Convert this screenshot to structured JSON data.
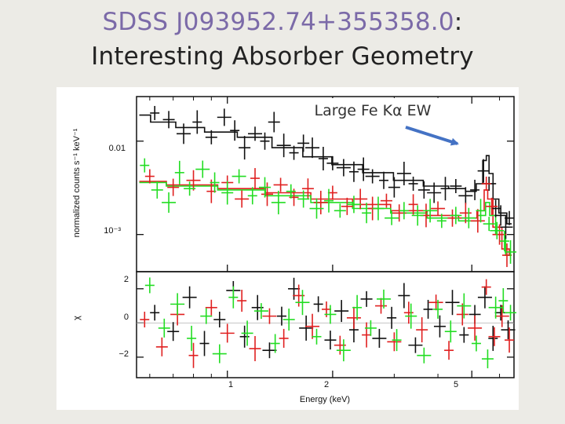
{
  "title": {
    "object": "SDSS J093952.74+355358.0",
    "colon": ":",
    "subtitle": "Interesting Absorber Geometry"
  },
  "chart_data": {
    "type": "scatter",
    "xlabel": "Energy (keV)",
    "x_scale": "log",
    "xlim": [
      0.55,
      6.6
    ],
    "x_ticks": [
      "1",
      "2",
      "5"
    ],
    "annotation": "Large Fe Kα EW",
    "colors": {
      "black": "#111111",
      "red": "#e02020",
      "green": "#22dd22",
      "arrow": "#4472c4"
    },
    "top_panel": {
      "ylabel": "normalized counts s⁻¹ keV⁻¹",
      "y_scale": "log",
      "ylim": [
        0.0004,
        0.03
      ],
      "y_ticks": [
        "0.01",
        "10⁻³"
      ],
      "series": [
        {
          "color": "black",
          "points": [
            [
              0.62,
              0.02
            ],
            [
              0.68,
              0.017
            ],
            [
              0.75,
              0.012
            ],
            [
              0.82,
              0.016
            ],
            [
              0.9,
              0.011
            ],
            [
              0.98,
              0.018
            ],
            [
              1.05,
              0.013
            ],
            [
              1.12,
              0.0085
            ],
            [
              1.2,
              0.012
            ],
            [
              1.28,
              0.01
            ],
            [
              1.36,
              0.016
            ],
            [
              1.45,
              0.009
            ],
            [
              1.55,
              0.0075
            ],
            [
              1.65,
              0.0095
            ],
            [
              1.75,
              0.0085
            ],
            [
              1.88,
              0.0065
            ],
            [
              2.0,
              0.0058
            ],
            [
              2.15,
              0.0052
            ],
            [
              2.3,
              0.0047
            ],
            [
              2.45,
              0.005
            ],
            [
              2.6,
              0.0042
            ],
            [
              2.8,
              0.0038
            ],
            [
              3.0,
              0.0032
            ],
            [
              3.2,
              0.0045
            ],
            [
              3.4,
              0.0035
            ],
            [
              3.65,
              0.003
            ],
            [
              3.9,
              0.0028
            ],
            [
              4.2,
              0.0031
            ],
            [
              4.5,
              0.0033
            ],
            [
              4.8,
              0.0026
            ],
            [
              5.1,
              0.003
            ],
            [
              5.4,
              0.0048
            ],
            [
              5.6,
              0.0035
            ],
            [
              5.85,
              0.0019
            ],
            [
              6.05,
              0.0016
            ],
            [
              6.25,
              0.0012
            ],
            [
              6.4,
              0.0015
            ]
          ],
          "model": [
            [
              0.56,
              0.019
            ],
            [
              0.65,
              0.016
            ],
            [
              0.78,
              0.014
            ],
            [
              0.95,
              0.0125
            ],
            [
              1.2,
              0.011
            ],
            [
              1.5,
              0.0085
            ],
            [
              1.8,
              0.0068
            ],
            [
              2.2,
              0.0056
            ],
            [
              2.7,
              0.0046
            ],
            [
              3.3,
              0.0038
            ],
            [
              4.0,
              0.0033
            ],
            [
              4.6,
              0.0031
            ],
            [
              5.0,
              0.0029
            ],
            [
              5.3,
              0.0035
            ],
            [
              5.45,
              0.0062
            ],
            [
              5.55,
              0.007
            ],
            [
              5.65,
              0.0045
            ],
            [
              5.85,
              0.0024
            ],
            [
              6.1,
              0.0017
            ],
            [
              6.5,
              0.0013
            ]
          ]
        },
        {
          "color": "red",
          "points": [
            [
              0.6,
              0.0042
            ],
            [
              0.7,
              0.0032
            ],
            [
              0.8,
              0.0038
            ],
            [
              0.9,
              0.0029
            ],
            [
              1.0,
              0.0036
            ],
            [
              1.1,
              0.0024
            ],
            [
              1.2,
              0.004
            ],
            [
              1.3,
              0.0027
            ],
            [
              1.42,
              0.0034
            ],
            [
              1.55,
              0.0025
            ],
            [
              1.7,
              0.0031
            ],
            [
              1.85,
              0.0022
            ],
            [
              2.0,
              0.0028
            ],
            [
              2.2,
              0.002
            ],
            [
              2.4,
              0.0024
            ],
            [
              2.6,
              0.0019
            ],
            [
              2.85,
              0.0023
            ],
            [
              3.1,
              0.0017
            ],
            [
              3.4,
              0.0021
            ],
            [
              3.7,
              0.0016
            ],
            [
              4.0,
              0.0019
            ],
            [
              4.4,
              0.0015
            ],
            [
              4.8,
              0.0017
            ],
            [
              5.2,
              0.0014
            ],
            [
              5.5,
              0.0035
            ],
            [
              5.7,
              0.002
            ],
            [
              6.0,
              0.001
            ],
            [
              6.3,
              0.0006
            ]
          ],
          "model": [
            [
              0.56,
              0.0037
            ],
            [
              0.8,
              0.0034
            ],
            [
              1.1,
              0.0031
            ],
            [
              1.5,
              0.0028
            ],
            [
              2.0,
              0.0024
            ],
            [
              2.6,
              0.0021
            ],
            [
              3.3,
              0.0018
            ],
            [
              4.2,
              0.0016
            ],
            [
              5.0,
              0.0015
            ],
            [
              5.35,
              0.0018
            ],
            [
              5.5,
              0.003
            ],
            [
              5.6,
              0.0024
            ],
            [
              5.9,
              0.0012
            ],
            [
              6.3,
              0.0007
            ],
            [
              6.5,
              0.0006
            ]
          ]
        },
        {
          "color": "green",
          "points": [
            [
              0.58,
              0.0055
            ],
            [
              0.63,
              0.003
            ],
            [
              0.68,
              0.0022
            ],
            [
              0.73,
              0.0046
            ],
            [
              0.78,
              0.0031
            ],
            [
              0.85,
              0.005
            ],
            [
              0.92,
              0.0036
            ],
            [
              1.0,
              0.0028
            ],
            [
              1.08,
              0.0042
            ],
            [
              1.18,
              0.0026
            ],
            [
              1.28,
              0.0032
            ],
            [
              1.4,
              0.0022
            ],
            [
              1.52,
              0.0029
            ],
            [
              1.65,
              0.0024
            ],
            [
              1.8,
              0.0019
            ],
            [
              1.95,
              0.0023
            ],
            [
              2.1,
              0.0018
            ],
            [
              2.3,
              0.0021
            ],
            [
              2.5,
              0.0017
            ],
            [
              2.7,
              0.0019
            ],
            [
              2.95,
              0.0015
            ],
            [
              3.2,
              0.0018
            ],
            [
              3.5,
              0.0016
            ],
            [
              3.8,
              0.0018
            ],
            [
              4.1,
              0.0014
            ],
            [
              4.5,
              0.0016
            ],
            [
              4.9,
              0.0015
            ],
            [
              5.3,
              0.0018
            ],
            [
              5.6,
              0.0013
            ],
            [
              5.9,
              0.0011
            ],
            [
              6.2,
              0.00085
            ],
            [
              6.45,
              0.00065
            ]
          ],
          "model": [
            [
              0.56,
              0.0036
            ],
            [
              0.8,
              0.0033
            ],
            [
              1.1,
              0.003
            ],
            [
              1.5,
              0.0026
            ],
            [
              2.0,
              0.0022
            ],
            [
              2.6,
              0.0019
            ],
            [
              3.3,
              0.0017
            ],
            [
              4.2,
              0.0015
            ],
            [
              5.0,
              0.0014
            ],
            [
              5.4,
              0.0016
            ],
            [
              5.55,
              0.0022
            ],
            [
              5.7,
              0.0016
            ],
            [
              6.0,
              0.001
            ],
            [
              6.5,
              0.0006
            ]
          ]
        }
      ]
    },
    "bottom_panel": {
      "ylabel": "χ",
      "ylim": [
        -3.2,
        3.0
      ],
      "y_ticks": [
        "2",
        "0",
        "−2"
      ],
      "series": [
        {
          "color": "black",
          "points": [
            [
              0.62,
              0.6
            ],
            [
              0.7,
              -0.5
            ],
            [
              0.78,
              1.5
            ],
            [
              0.86,
              -1.2
            ],
            [
              0.95,
              0.2
            ],
            [
              1.04,
              1.9
            ],
            [
              1.12,
              -0.8
            ],
            [
              1.22,
              0.9
            ],
            [
              1.32,
              -1.6
            ],
            [
              1.43,
              0.4
            ],
            [
              1.55,
              2.0
            ],
            [
              1.68,
              -0.3
            ],
            [
              1.82,
              1.1
            ],
            [
              1.97,
              -1.0
            ],
            [
              2.12,
              0.7
            ],
            [
              2.3,
              -0.4
            ],
            [
              2.5,
              1.4
            ],
            [
              2.72,
              -0.9
            ],
            [
              2.95,
              0.3
            ],
            [
              3.2,
              1.6
            ],
            [
              3.45,
              -1.3
            ],
            [
              3.75,
              0.8
            ],
            [
              4.05,
              -0.2
            ],
            [
              4.4,
              1.2
            ],
            [
              4.75,
              -0.7
            ],
            [
              5.1,
              0.5
            ],
            [
              5.45,
              1.5
            ],
            [
              5.75,
              -0.9
            ],
            [
              6.05,
              0.6
            ],
            [
              6.35,
              -0.4
            ]
          ]
        },
        {
          "color": "red",
          "points": [
            [
              0.58,
              0.2
            ],
            [
              0.65,
              -1.4
            ],
            [
              0.72,
              0.5
            ],
            [
              0.8,
              -1.9
            ],
            [
              0.9,
              0.9
            ],
            [
              1.0,
              -0.6
            ],
            [
              1.1,
              1.3
            ],
            [
              1.2,
              -1.5
            ],
            [
              1.32,
              0.4
            ],
            [
              1.45,
              -0.9
            ],
            [
              1.6,
              1.6
            ],
            [
              1.75,
              -0.2
            ],
            [
              1.92,
              0.8
            ],
            [
              2.1,
              -1.3
            ],
            [
              2.3,
              0.3
            ],
            [
              2.5,
              -0.7
            ],
            [
              2.75,
              1.0
            ],
            [
              3.0,
              -1.1
            ],
            [
              3.3,
              0.6
            ],
            [
              3.6,
              -0.4
            ],
            [
              3.95,
              1.2
            ],
            [
              4.3,
              -1.6
            ],
            [
              4.7,
              0.5
            ],
            [
              5.1,
              -0.3
            ],
            [
              5.5,
              2.1
            ],
            [
              5.8,
              -0.8
            ],
            [
              6.1,
              0.4
            ],
            [
              6.4,
              -1.0
            ]
          ]
        },
        {
          "color": "green",
          "points": [
            [
              0.6,
              2.2
            ],
            [
              0.66,
              -0.3
            ],
            [
              0.72,
              1.1
            ],
            [
              0.79,
              -0.9
            ],
            [
              0.87,
              0.4
            ],
            [
              0.95,
              -1.8
            ],
            [
              1.04,
              1.5
            ],
            [
              1.14,
              -0.6
            ],
            [
              1.25,
              0.7
            ],
            [
              1.37,
              -1.2
            ],
            [
              1.5,
              0.2
            ],
            [
              1.64,
              1.2
            ],
            [
              1.8,
              -0.8
            ],
            [
              1.97,
              0.5
            ],
            [
              2.15,
              -1.6
            ],
            [
              2.35,
              0.9
            ],
            [
              2.57,
              -0.3
            ],
            [
              2.8,
              1.4
            ],
            [
              3.05,
              -1.0
            ],
            [
              3.35,
              0.4
            ],
            [
              3.65,
              -1.9
            ],
            [
              4.0,
              0.8
            ],
            [
              4.35,
              -0.5
            ],
            [
              4.75,
              1.0
            ],
            [
              5.15,
              -1.2
            ],
            [
              5.55,
              -2.1
            ],
            [
              5.85,
              0.9
            ],
            [
              6.15,
              1.3
            ],
            [
              6.45,
              0.6
            ]
          ]
        }
      ]
    }
  }
}
